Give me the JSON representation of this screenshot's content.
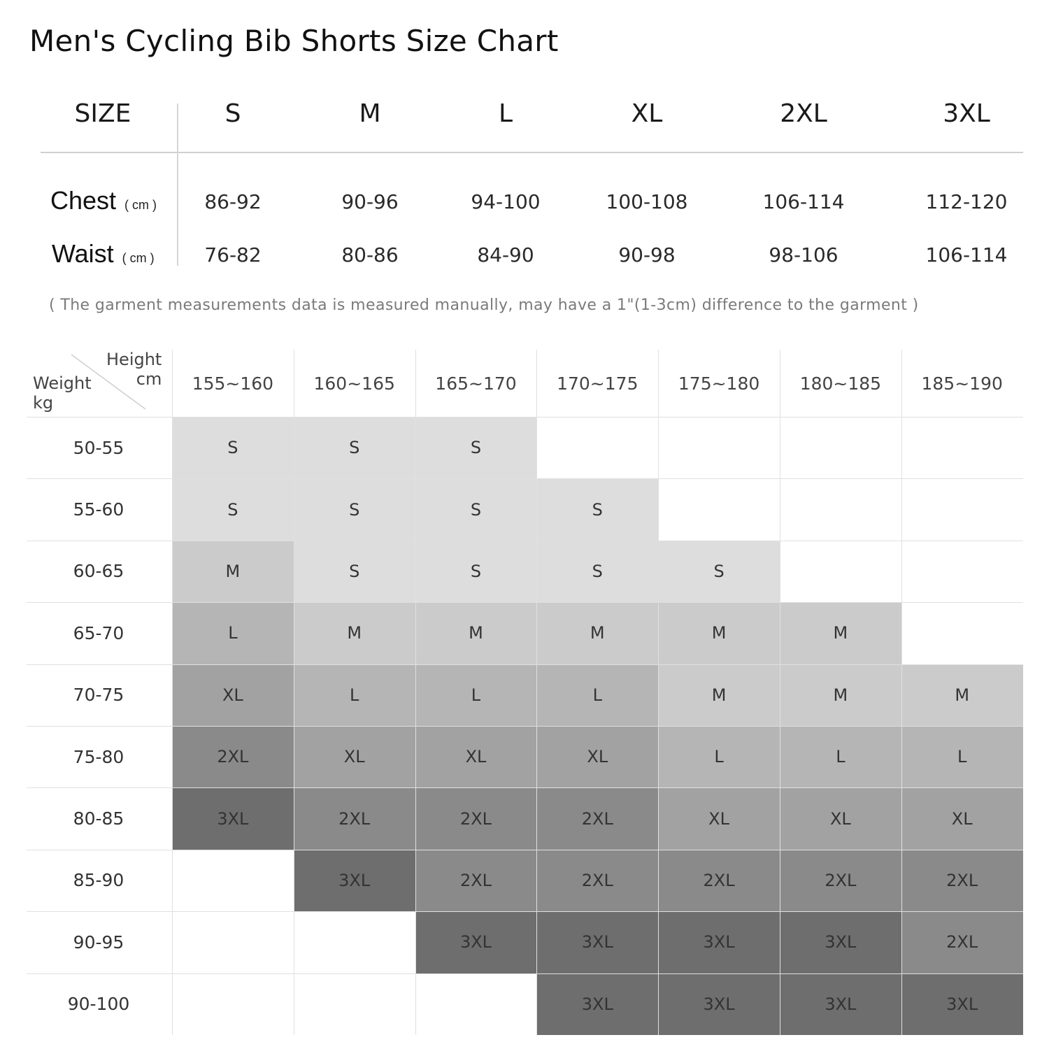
{
  "title": "Men's Cycling Bib Shorts Size Chart",
  "measurements": {
    "size_label": "SIZE",
    "sizes": [
      "S",
      "M",
      "L",
      "XL",
      "2XL",
      "3XL"
    ],
    "rows": [
      {
        "label": "Chest",
        "unit": "( cm )",
        "values": [
          "86-92",
          "90-96",
          "94-100",
          "100-108",
          "106-114",
          "112-120"
        ]
      },
      {
        "label": "Waist",
        "unit": "( cm )",
        "values": [
          "76-82",
          "80-86",
          "84-90",
          "90-98",
          "98-106",
          "106-114"
        ]
      }
    ]
  },
  "note": "( The garment measurements data is measured manually, may have a 1\"(1-3cm) difference to the garment )",
  "chart_data": {
    "type": "table",
    "corner": {
      "height_label": "Height",
      "height_unit": "cm",
      "weight_label": "Weight",
      "weight_unit": "kg"
    },
    "heights": [
      "155~160",
      "160~165",
      "165~170",
      "170~175",
      "175~180",
      "180~185",
      "185~190"
    ],
    "weights": [
      "50-55",
      "55-60",
      "60-65",
      "65-70",
      "70-75",
      "75-80",
      "80-85",
      "85-90",
      "90-95",
      "90-100"
    ],
    "cells": [
      [
        "S",
        "S",
        "S",
        "",
        "",
        "",
        ""
      ],
      [
        "S",
        "S",
        "S",
        "S",
        "",
        "",
        ""
      ],
      [
        "M",
        "S",
        "S",
        "S",
        "S",
        "",
        ""
      ],
      [
        "L",
        "M",
        "M",
        "M",
        "M",
        "M",
        ""
      ],
      [
        "XL",
        "L",
        "L",
        "L",
        "M",
        "M",
        "M"
      ],
      [
        "2XL",
        "XL",
        "XL",
        "XL",
        "L",
        "L",
        "L"
      ],
      [
        "3XL",
        "2XL",
        "2XL",
        "2XL",
        "XL",
        "XL",
        "XL"
      ],
      [
        "",
        "3XL",
        "2XL",
        "2XL",
        "2XL",
        "2XL",
        "2XL"
      ],
      [
        "",
        "",
        "3XL",
        "3XL",
        "3XL",
        "3XL",
        "2XL"
      ],
      [
        "",
        "",
        "",
        "3XL",
        "3XL",
        "3XL",
        "3XL"
      ]
    ],
    "size_colors": {
      "S": "#dddddd",
      "M": "#cbcbcb",
      "L": "#b5b5b5",
      "XL": "#a2a2a2",
      "2XL": "#8a8a8a",
      "3XL": "#6e6e6e"
    }
  }
}
